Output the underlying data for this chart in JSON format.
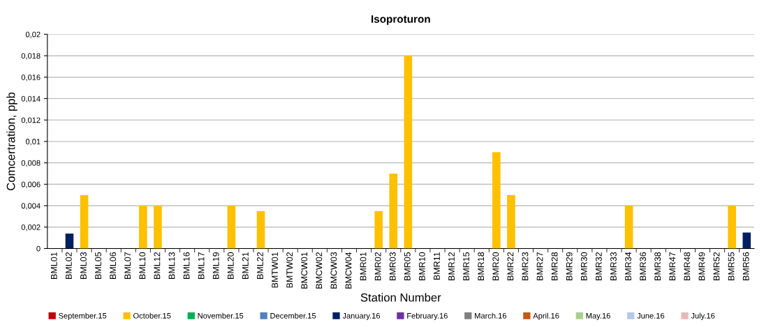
{
  "chart_data": {
    "type": "bar",
    "title": "Isoproturon",
    "xlabel": "Station Number",
    "ylabel": "Comcertration, ppb",
    "categories": [
      "BML01",
      "BML02",
      "BML03",
      "BML05",
      "BML06",
      "BML07",
      "BML10",
      "BML12",
      "BML13",
      "BML16",
      "BML17",
      "BML19",
      "BML20",
      "BML21",
      "BML22",
      "BMTW01",
      "BMTW02",
      "BMCW01",
      "BMCW02",
      "BMCW03",
      "BMCW04",
      "BMR01",
      "BMR02",
      "BMR03",
      "BMR05",
      "BMR10",
      "BMR11",
      "BMR12",
      "BMR15",
      "BMR18",
      "BMR20",
      "BMR22",
      "BMR23",
      "BMR27",
      "BMR28",
      "BMR29",
      "BMR30",
      "BMR32",
      "BMR33",
      "BMR34",
      "BMR36",
      "BMR38",
      "BMR47",
      "BMR48",
      "BMR49",
      "BMR52",
      "BMR55",
      "BMR56"
    ],
    "series": [
      {
        "name": "September.15",
        "color": "#c00000",
        "values": [
          null,
          null,
          null,
          null,
          null,
          null,
          null,
          null,
          null,
          null,
          null,
          null,
          null,
          null,
          null,
          null,
          null,
          null,
          null,
          null,
          null,
          null,
          null,
          null,
          null,
          null,
          null,
          null,
          null,
          null,
          null,
          null,
          null,
          null,
          null,
          null,
          null,
          null,
          null,
          null,
          null,
          null,
          null,
          null,
          null,
          null,
          null,
          null
        ]
      },
      {
        "name": "October.15",
        "color": "#ffc000",
        "values": [
          null,
          null,
          0.005,
          null,
          null,
          null,
          0.004,
          0.004,
          null,
          null,
          null,
          null,
          0.004,
          null,
          0.0035,
          null,
          null,
          null,
          null,
          null,
          null,
          null,
          0.0035,
          0.007,
          0.018,
          null,
          null,
          null,
          null,
          null,
          0.009,
          0.005,
          null,
          null,
          null,
          null,
          null,
          null,
          null,
          0.004,
          null,
          null,
          null,
          null,
          null,
          null,
          0.004,
          null
        ]
      },
      {
        "name": "November.15",
        "color": "#00b050",
        "values": [
          null,
          null,
          null,
          null,
          null,
          null,
          null,
          null,
          null,
          null,
          null,
          null,
          null,
          null,
          null,
          null,
          null,
          null,
          null,
          null,
          null,
          null,
          null,
          null,
          null,
          null,
          null,
          null,
          null,
          null,
          null,
          null,
          null,
          null,
          null,
          null,
          null,
          null,
          null,
          null,
          null,
          null,
          null,
          null,
          null,
          null,
          null,
          null
        ]
      },
      {
        "name": "December.15",
        "color": "#4f81bd",
        "values": [
          null,
          null,
          null,
          null,
          null,
          null,
          null,
          null,
          null,
          null,
          null,
          null,
          null,
          null,
          null,
          null,
          null,
          null,
          null,
          null,
          null,
          null,
          null,
          null,
          null,
          null,
          null,
          null,
          null,
          null,
          null,
          null,
          null,
          null,
          null,
          null,
          null,
          null,
          null,
          null,
          null,
          null,
          null,
          null,
          null,
          null,
          null,
          null
        ]
      },
      {
        "name": "January.16",
        "color": "#002060",
        "values": [
          null,
          0.0014,
          null,
          null,
          null,
          null,
          null,
          null,
          null,
          null,
          null,
          null,
          null,
          null,
          null,
          null,
          null,
          null,
          null,
          null,
          null,
          null,
          null,
          null,
          null,
          null,
          null,
          null,
          null,
          null,
          null,
          null,
          null,
          null,
          null,
          null,
          null,
          null,
          null,
          null,
          null,
          null,
          null,
          null,
          null,
          null,
          null,
          0.0015
        ]
      },
      {
        "name": "February.16",
        "color": "#7030a0",
        "values": [
          null,
          null,
          null,
          null,
          null,
          null,
          null,
          null,
          null,
          null,
          null,
          null,
          null,
          null,
          null,
          null,
          null,
          null,
          null,
          null,
          null,
          null,
          null,
          null,
          null,
          null,
          null,
          null,
          null,
          null,
          null,
          null,
          null,
          null,
          null,
          null,
          null,
          null,
          null,
          null,
          null,
          null,
          null,
          null,
          null,
          null,
          null,
          null
        ]
      },
      {
        "name": "March.16",
        "color": "#808080",
        "values": [
          null,
          null,
          null,
          null,
          null,
          null,
          null,
          null,
          null,
          null,
          null,
          null,
          null,
          null,
          null,
          null,
          null,
          null,
          null,
          null,
          null,
          null,
          null,
          null,
          null,
          null,
          null,
          null,
          null,
          null,
          null,
          null,
          null,
          null,
          null,
          null,
          null,
          null,
          null,
          null,
          null,
          null,
          null,
          null,
          null,
          null,
          null,
          null
        ]
      },
      {
        "name": "April.16",
        "color": "#c55a11",
        "values": [
          null,
          null,
          null,
          null,
          null,
          null,
          null,
          null,
          null,
          null,
          null,
          null,
          null,
          null,
          null,
          null,
          null,
          null,
          null,
          null,
          null,
          null,
          null,
          null,
          null,
          null,
          null,
          null,
          null,
          null,
          null,
          null,
          null,
          null,
          null,
          null,
          null,
          null,
          null,
          null,
          null,
          null,
          null,
          null,
          null,
          null,
          null,
          null
        ]
      },
      {
        "name": "May.16",
        "color": "#a9d18e",
        "values": [
          null,
          null,
          null,
          null,
          null,
          null,
          null,
          null,
          null,
          null,
          null,
          null,
          null,
          null,
          null,
          null,
          null,
          null,
          null,
          null,
          null,
          null,
          null,
          null,
          null,
          null,
          null,
          null,
          null,
          null,
          null,
          null,
          null,
          null,
          null,
          null,
          null,
          null,
          null,
          null,
          null,
          null,
          null,
          null,
          null,
          null,
          null,
          null
        ]
      },
      {
        "name": "June.16",
        "color": "#b4c7e7",
        "values": [
          null,
          null,
          null,
          null,
          null,
          null,
          null,
          null,
          null,
          null,
          null,
          null,
          null,
          null,
          null,
          null,
          null,
          null,
          null,
          null,
          null,
          null,
          null,
          null,
          null,
          null,
          null,
          null,
          null,
          null,
          null,
          null,
          null,
          null,
          null,
          null,
          null,
          null,
          null,
          null,
          null,
          null,
          null,
          null,
          null,
          null,
          null,
          null
        ]
      },
      {
        "name": "July.16",
        "color": "#e6b9b8",
        "values": [
          null,
          null,
          null,
          null,
          null,
          null,
          null,
          null,
          null,
          null,
          null,
          null,
          null,
          null,
          null,
          null,
          null,
          null,
          null,
          null,
          null,
          null,
          null,
          null,
          null,
          null,
          null,
          null,
          null,
          null,
          null,
          null,
          null,
          null,
          null,
          null,
          null,
          null,
          null,
          null,
          null,
          null,
          null,
          null,
          null,
          null,
          null,
          null
        ]
      }
    ],
    "ylim": [
      0,
      0.02
    ],
    "yticks": [
      {
        "value": 0,
        "label": "0"
      },
      {
        "value": 0.002,
        "label": "0,002"
      },
      {
        "value": 0.004,
        "label": "0,004"
      },
      {
        "value": 0.006,
        "label": "0,006"
      },
      {
        "value": 0.008,
        "label": "0,008"
      },
      {
        "value": 0.01,
        "label": "0,01"
      },
      {
        "value": 0.012,
        "label": "0,012"
      },
      {
        "value": 0.014,
        "label": "0,014"
      },
      {
        "value": 0.016,
        "label": "0,016"
      },
      {
        "value": 0.018,
        "label": "0,018"
      },
      {
        "value": 0.02,
        "label": "0,02"
      }
    ],
    "grid": "y",
    "legend": "bottom"
  }
}
